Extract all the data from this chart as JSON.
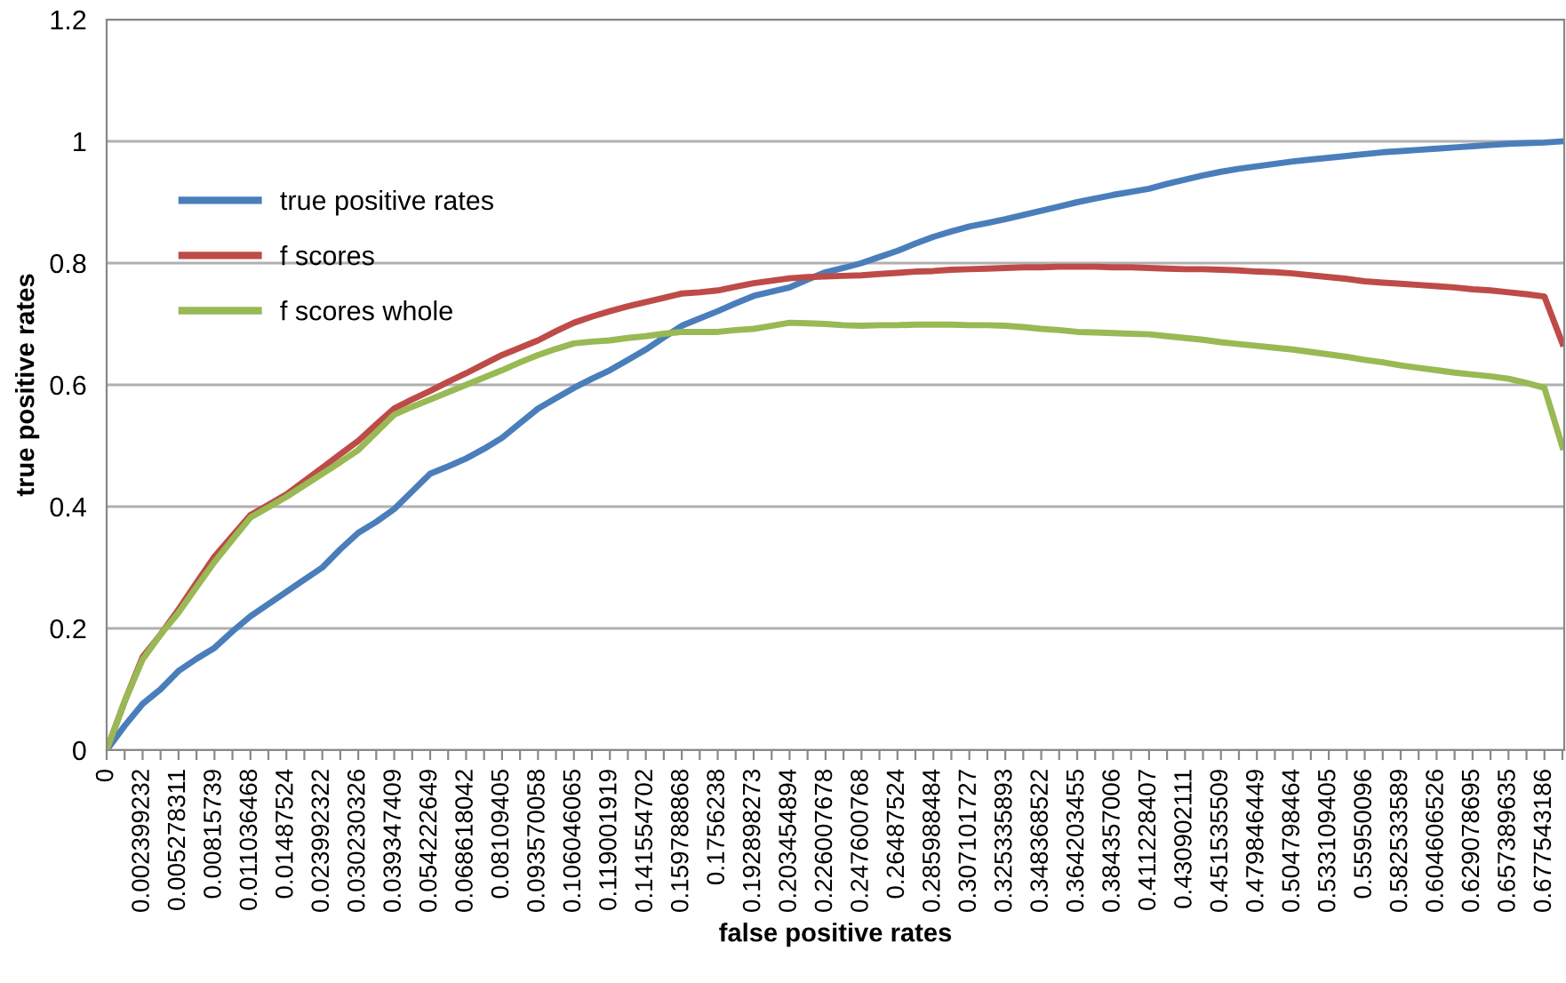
{
  "chart_data": {
    "type": "line",
    "xlabel": "false positive rates",
    "ylabel": "true positive rates",
    "categories": [
      "0",
      null,
      "0.002399232",
      null,
      "0.005278311",
      null,
      "0.00815739",
      null,
      "0.011036468",
      null,
      "0.01487524",
      null,
      "0.023992322",
      null,
      "0.030230326",
      null,
      "0.039347409",
      null,
      "0.054222649",
      null,
      "0.068618042",
      null,
      "0.08109405",
      null,
      "0.093570058",
      null,
      "0.106046065",
      null,
      "0.119001919",
      null,
      "0.141554702",
      null,
      "0.159788868",
      null,
      "0.1756238",
      null,
      "0.192898273",
      null,
      "0.203454894",
      null,
      "0.226007678",
      null,
      "0.247600768",
      null,
      "0.26487524",
      null,
      "0.285988484",
      null,
      "0.307101727",
      null,
      "0.325335893",
      null,
      "0.348368522",
      null,
      "0.364203455",
      null,
      "0.384357006",
      null,
      "0.411228407",
      null,
      "0.430902111",
      null,
      "0.451535509",
      null,
      "0.479846449",
      null,
      "0.504798464",
      null,
      "0.533109405",
      null,
      "0.55950096",
      null,
      "0.582533589",
      null,
      "0.604606526",
      null,
      "0.629078695",
      null,
      "0.657389635",
      null,
      "0.677543186",
      null
    ],
    "series": [
      {
        "name": "true positive rates",
        "color": "#4a7ebb",
        "values": [
          0,
          0.04,
          0.076,
          0.1,
          0.13,
          0.15,
          0.168,
          0.195,
          0.22,
          0.24,
          0.26,
          0.28,
          0.3,
          0.33,
          0.357,
          0.375,
          0.396,
          0.425,
          0.454,
          0.466,
          0.479,
          0.495,
          0.513,
          0.537,
          0.561,
          0.578,
          0.595,
          0.61,
          0.624,
          0.641,
          0.658,
          0.678,
          0.697,
          0.709,
          0.721,
          0.734,
          0.746,
          0.753,
          0.76,
          0.773,
          0.785,
          0.792,
          0.8,
          0.81,
          0.82,
          0.832,
          0.843,
          0.852,
          0.86,
          0.866,
          0.872,
          0.879,
          0.886,
          0.893,
          0.9,
          0.906,
          0.912,
          0.917,
          0.922,
          0.93,
          0.937,
          0.944,
          0.95,
          0.955,
          0.959,
          0.963,
          0.967,
          0.97,
          0.973,
          0.976,
          0.979,
          0.982,
          0.984,
          0.986,
          0.988,
          0.99,
          0.992,
          0.994,
          0.996,
          0.997,
          0.998,
          1.0
        ]
      },
      {
        "name": "f scores",
        "color": "#be4b48",
        "values": [
          0,
          0.08,
          0.153,
          0.19,
          0.231,
          0.275,
          0.318,
          0.352,
          0.386,
          0.403,
          0.42,
          0.442,
          0.464,
          0.486,
          0.508,
          0.535,
          0.561,
          0.576,
          0.59,
          0.605,
          0.619,
          0.634,
          0.649,
          0.661,
          0.673,
          0.688,
          0.702,
          0.712,
          0.721,
          0.729,
          0.736,
          0.743,
          0.75,
          0.752,
          0.755,
          0.761,
          0.767,
          0.771,
          0.775,
          0.777,
          0.778,
          0.779,
          0.78,
          0.782,
          0.784,
          0.786,
          0.787,
          0.789,
          0.79,
          0.791,
          0.792,
          0.793,
          0.793,
          0.794,
          0.794,
          0.794,
          0.793,
          0.793,
          0.792,
          0.791,
          0.79,
          0.79,
          0.789,
          0.788,
          0.786,
          0.785,
          0.783,
          0.78,
          0.777,
          0.774,
          0.77,
          0.768,
          0.766,
          0.764,
          0.762,
          0.76,
          0.757,
          0.755,
          0.752,
          0.749,
          0.745,
          0.668
        ]
      },
      {
        "name": "f scores whole",
        "color": "#98b954",
        "values": [
          0,
          0.08,
          0.149,
          0.19,
          0.226,
          0.268,
          0.309,
          0.346,
          0.382,
          0.399,
          0.416,
          0.435,
          0.454,
          0.473,
          0.493,
          0.522,
          0.551,
          0.564,
          0.576,
          0.588,
          0.6,
          0.612,
          0.624,
          0.637,
          0.649,
          0.659,
          0.668,
          0.671,
          0.673,
          0.677,
          0.68,
          0.684,
          0.687,
          0.687,
          0.687,
          0.69,
          0.692,
          0.697,
          0.702,
          0.701,
          0.7,
          0.698,
          0.697,
          0.698,
          0.698,
          0.699,
          0.699,
          0.699,
          0.698,
          0.698,
          0.697,
          0.695,
          0.692,
          0.69,
          0.687,
          0.686,
          0.685,
          0.684,
          0.683,
          0.68,
          0.677,
          0.674,
          0.67,
          0.667,
          0.664,
          0.661,
          0.658,
          0.654,
          0.65,
          0.646,
          0.641,
          0.637,
          0.632,
          0.628,
          0.624,
          0.62,
          0.617,
          0.614,
          0.61,
          0.603,
          0.595,
          0.498
        ]
      }
    ],
    "ylim": [
      0,
      1.2
    ],
    "yticks": [
      0,
      0.2,
      0.4,
      0.6,
      0.8,
      1,
      1.2
    ],
    "grid": "y",
    "legend": "top left",
    "marker": "none",
    "line_style": "solid"
  }
}
